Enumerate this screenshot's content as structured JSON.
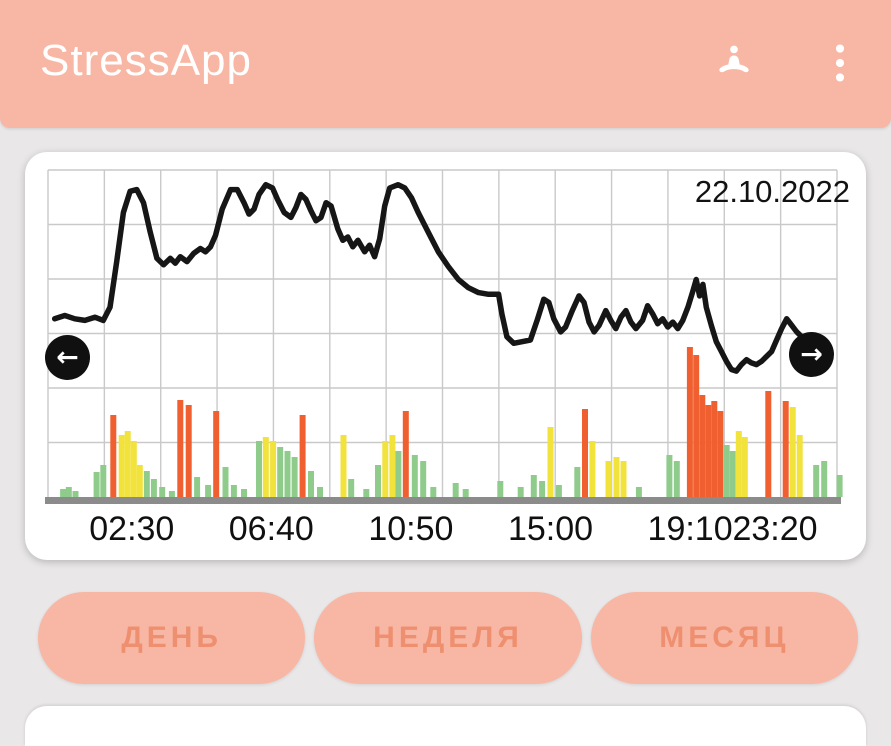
{
  "app": {
    "title": "StressApp"
  },
  "header": {
    "icons": [
      {
        "name": "meditation-icon"
      },
      {
        "name": "menu-dots-icon"
      }
    ]
  },
  "chart": {
    "date": "22.10.2022",
    "nav": {
      "prev": "←",
      "next": "→"
    }
  },
  "period_buttons": [
    {
      "id": "day",
      "label": "ДЕНЬ"
    },
    {
      "id": "week",
      "label": "НЕДЕЛЯ"
    },
    {
      "id": "month",
      "label": "МЕСЯЦ"
    }
  ],
  "colors": {
    "page_bg": "#e9e7e7",
    "header_bg": "#f8b7a5",
    "button_bg": "#f8b7a5",
    "button_text": "#ee9070",
    "line": "#161616",
    "grid": "#c9c9c9",
    "baseline": "#8b8b8b",
    "bar_green": "#8fcc8b",
    "bar_yellow": "#f2e23c",
    "bar_orange": "#ef5f30",
    "axis_text": "#101010"
  },
  "chart_data": {
    "type": "line+bar",
    "title": "Stress level over the day",
    "date_label": "22.10.2022",
    "grid": true,
    "x_axis": {
      "unit": "time",
      "range_hours": [
        0,
        24
      ],
      "tick_labels": [
        "02:30",
        "06:40",
        "10:50",
        "15:00",
        "19:10",
        "23:20"
      ]
    },
    "y_axis": {
      "unit": "stress index (relative 0-100)",
      "range": [
        0,
        100
      ],
      "ticks_visible": false
    },
    "line_series": {
      "name": "stress-level",
      "points": [
        [
          0.2,
          54.5
        ],
        [
          0.5,
          55.5
        ],
        [
          0.8,
          54.5
        ],
        [
          1.1,
          54
        ],
        [
          1.4,
          55
        ],
        [
          1.65,
          54
        ],
        [
          1.85,
          58
        ],
        [
          2.05,
          72
        ],
        [
          2.25,
          87
        ],
        [
          2.45,
          93.5
        ],
        [
          2.65,
          94
        ],
        [
          2.85,
          90
        ],
        [
          3.05,
          81
        ],
        [
          3.25,
          73
        ],
        [
          3.45,
          71
        ],
        [
          3.65,
          73
        ],
        [
          3.8,
          71.5
        ],
        [
          3.95,
          73.5
        ],
        [
          4.15,
          72
        ],
        [
          4.35,
          74.5
        ],
        [
          4.55,
          76
        ],
        [
          4.7,
          75
        ],
        [
          4.85,
          76.5
        ],
        [
          5.0,
          80
        ],
        [
          5.2,
          88
        ],
        [
          5.45,
          94
        ],
        [
          5.65,
          94
        ],
        [
          5.85,
          90
        ],
        [
          6.0,
          86.5
        ],
        [
          6.15,
          88
        ],
        [
          6.3,
          92.5
        ],
        [
          6.5,
          95.5
        ],
        [
          6.7,
          94.5
        ],
        [
          6.85,
          91
        ],
        [
          7.05,
          87
        ],
        [
          7.25,
          85.5
        ],
        [
          7.4,
          88.5
        ],
        [
          7.55,
          92.5
        ],
        [
          7.7,
          91
        ],
        [
          7.85,
          87.5
        ],
        [
          8.0,
          84.5
        ],
        [
          8.15,
          85.5
        ],
        [
          8.3,
          90
        ],
        [
          8.45,
          89
        ],
        [
          8.65,
          82
        ],
        [
          8.8,
          78.5
        ],
        [
          8.95,
          79.5
        ],
        [
          9.1,
          76.5
        ],
        [
          9.25,
          78.5
        ],
        [
          9.45,
          75
        ],
        [
          9.6,
          77
        ],
        [
          9.75,
          73.5
        ],
        [
          9.9,
          79
        ],
        [
          10.05,
          89
        ],
        [
          10.2,
          94.5
        ],
        [
          10.45,
          95.5
        ],
        [
          10.65,
          94.5
        ],
        [
          10.85,
          91.5
        ],
        [
          11.05,
          87
        ],
        [
          11.35,
          81
        ],
        [
          11.65,
          75
        ],
        [
          11.95,
          70.5
        ],
        [
          12.25,
          66.5
        ],
        [
          12.55,
          64
        ],
        [
          12.85,
          62.5
        ],
        [
          13.15,
          62
        ],
        [
          13.45,
          62
        ],
        [
          13.55,
          56
        ],
        [
          13.7,
          49
        ],
        [
          13.9,
          47
        ],
        [
          14.15,
          47.5
        ],
        [
          14.4,
          48
        ],
        [
          14.6,
          54
        ],
        [
          14.8,
          60.5
        ],
        [
          14.95,
          59.5
        ],
        [
          15.1,
          54.5
        ],
        [
          15.3,
          50.5
        ],
        [
          15.45,
          52
        ],
        [
          15.65,
          57
        ],
        [
          15.85,
          61.5
        ],
        [
          16.0,
          59.5
        ],
        [
          16.15,
          53.5
        ],
        [
          16.3,
          50.5
        ],
        [
          16.45,
          52.5
        ],
        [
          16.65,
          57
        ],
        [
          16.8,
          54
        ],
        [
          16.95,
          51.5
        ],
        [
          17.1,
          55
        ],
        [
          17.25,
          57
        ],
        [
          17.4,
          53.5
        ],
        [
          17.55,
          51.5
        ],
        [
          17.75,
          54
        ],
        [
          17.9,
          58.5
        ],
        [
          18.05,
          56
        ],
        [
          18.2,
          53
        ],
        [
          18.35,
          54.5
        ],
        [
          18.5,
          52
        ],
        [
          18.65,
          53.5
        ],
        [
          18.8,
          51.5
        ],
        [
          18.95,
          54
        ],
        [
          19.1,
          58
        ],
        [
          19.25,
          63
        ],
        [
          19.35,
          66.5
        ],
        [
          19.45,
          61.5
        ],
        [
          19.55,
          65
        ],
        [
          19.65,
          58
        ],
        [
          19.8,
          52.5
        ],
        [
          19.95,
          47.5
        ],
        [
          20.1,
          44.5
        ],
        [
          20.25,
          41.5
        ],
        [
          20.4,
          39
        ],
        [
          20.55,
          38.5
        ],
        [
          20.7,
          40.5
        ],
        [
          20.85,
          42
        ],
        [
          21.0,
          41
        ],
        [
          21.15,
          40.5
        ],
        [
          21.3,
          41.5
        ],
        [
          21.45,
          43
        ],
        [
          21.6,
          44.5
        ],
        [
          21.75,
          48
        ],
        [
          21.9,
          51.5
        ],
        [
          22.05,
          54.5
        ],
        [
          22.2,
          52.5
        ],
        [
          22.35,
          50.5
        ],
        [
          22.55,
          48.5
        ],
        [
          22.75,
          47
        ],
        [
          22.95,
          45.5
        ],
        [
          23.1,
          44.5
        ]
      ]
    },
    "bar_series": {
      "name": "stress-episodes",
      "unit": "intensity (relative px 0-150)",
      "color_legend": {
        "g": "low (green)",
        "y": "medium (yellow)",
        "o": "high (orange)"
      },
      "bars": [
        [
          0.45,
          8,
          "g"
        ],
        [
          0.62,
          10,
          "g"
        ],
        [
          0.82,
          6,
          "g"
        ],
        [
          1.45,
          25,
          "g"
        ],
        [
          1.65,
          32,
          "g"
        ],
        [
          1.95,
          82,
          "o"
        ],
        [
          2.2,
          62,
          "y"
        ],
        [
          2.38,
          66,
          "y"
        ],
        [
          2.56,
          56,
          "y"
        ],
        [
          2.74,
          32,
          "y"
        ],
        [
          2.95,
          26,
          "g"
        ],
        [
          3.16,
          18,
          "g"
        ],
        [
          3.41,
          10,
          "g"
        ],
        [
          3.7,
          6,
          "g"
        ],
        [
          3.95,
          97,
          "o"
        ],
        [
          4.2,
          92,
          "o"
        ],
        [
          4.45,
          20,
          "g"
        ],
        [
          4.78,
          12,
          "g"
        ],
        [
          5.02,
          86,
          "o"
        ],
        [
          5.3,
          30,
          "g"
        ],
        [
          5.55,
          12,
          "g"
        ],
        [
          5.85,
          8,
          "g"
        ],
        [
          6.3,
          56,
          "g"
        ],
        [
          6.5,
          60,
          "y"
        ],
        [
          6.72,
          56,
          "y"
        ],
        [
          6.93,
          50,
          "g"
        ],
        [
          7.15,
          46,
          "g"
        ],
        [
          7.36,
          40,
          "g"
        ],
        [
          7.6,
          82,
          "o"
        ],
        [
          7.85,
          26,
          "g"
        ],
        [
          8.12,
          10,
          "g"
        ],
        [
          8.82,
          62,
          "y"
        ],
        [
          9.05,
          18,
          "g"
        ],
        [
          9.5,
          8,
          "g"
        ],
        [
          9.85,
          32,
          "g"
        ],
        [
          10.07,
          56,
          "y"
        ],
        [
          10.28,
          62,
          "y"
        ],
        [
          10.46,
          46,
          "g"
        ],
        [
          10.68,
          86,
          "o"
        ],
        [
          10.95,
          42,
          "g"
        ],
        [
          11.2,
          36,
          "g"
        ],
        [
          11.5,
          10,
          "g"
        ],
        [
          12.17,
          14,
          "g"
        ],
        [
          12.47,
          8,
          "g"
        ],
        [
          13.5,
          16,
          "g"
        ],
        [
          14.11,
          10,
          "g"
        ],
        [
          14.5,
          22,
          "g"
        ],
        [
          14.75,
          16,
          "g"
        ],
        [
          15.0,
          70,
          "y"
        ],
        [
          15.25,
          12,
          "g"
        ],
        [
          15.8,
          30,
          "g"
        ],
        [
          16.03,
          88,
          "o"
        ],
        [
          16.25,
          56,
          "y"
        ],
        [
          16.73,
          36,
          "y"
        ],
        [
          16.97,
          40,
          "y"
        ],
        [
          17.18,
          36,
          "y"
        ],
        [
          17.64,
          10,
          "g"
        ],
        [
          18.55,
          42,
          "g"
        ],
        [
          18.77,
          36,
          "g"
        ],
        [
          19.16,
          150,
          "o"
        ],
        [
          19.35,
          142,
          "o"
        ],
        [
          19.53,
          102,
          "o"
        ],
        [
          19.71,
          92,
          "o"
        ],
        [
          19.89,
          96,
          "o"
        ],
        [
          20.07,
          86,
          "o"
        ],
        [
          20.26,
          52,
          "g"
        ],
        [
          20.44,
          46,
          "g"
        ],
        [
          20.62,
          66,
          "y"
        ],
        [
          20.8,
          60,
          "y"
        ],
        [
          21.5,
          106,
          "o"
        ],
        [
          22.02,
          96,
          "o"
        ],
        [
          22.23,
          90,
          "y"
        ],
        [
          22.44,
          62,
          "y"
        ],
        [
          22.93,
          32,
          "g"
        ],
        [
          23.17,
          36,
          "g"
        ],
        [
          23.63,
          22,
          "g"
        ]
      ]
    }
  }
}
